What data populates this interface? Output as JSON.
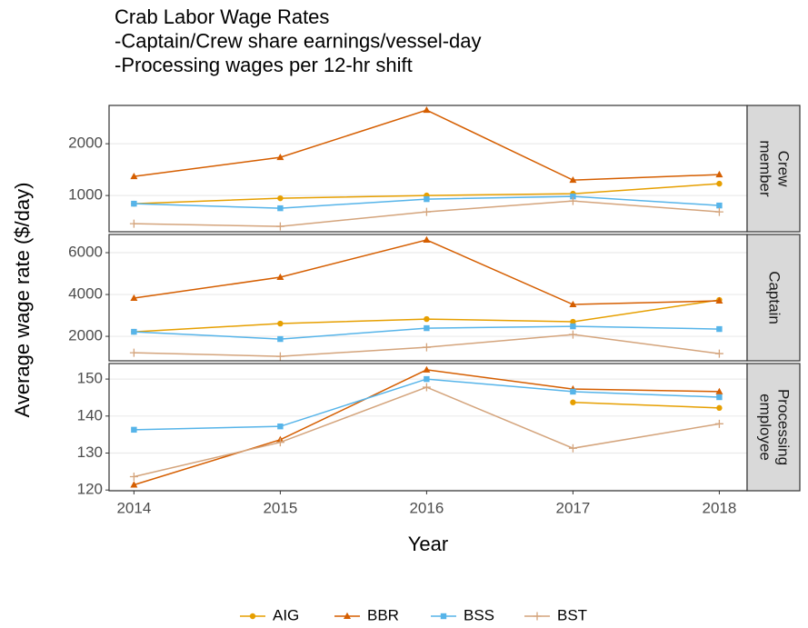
{
  "chart_data": [
    {
      "type": "line",
      "title": [
        "Crab Labor Wage Rates",
        "-Captain/Crew share earnings/vessel-day",
        "-Processing wages per 12-hr shift"
      ],
      "ylabel": "Average wage rate ($/day)",
      "facet": [
        "Crew",
        "member"
      ],
      "x": [
        2014,
        2015,
        2016,
        2017,
        2018
      ],
      "xlim": [
        2013.83,
        2018.19
      ],
      "ylim": [
        300,
        2740
      ],
      "yticks": [
        1000,
        2000
      ],
      "grid": true,
      "series": [
        {
          "name": "AIG",
          "color": "#e69f00",
          "marker": "circle",
          "values": [
            842,
            947,
            1000,
            1035,
            1228
          ]
        },
        {
          "name": "BBR",
          "color": "#d55e00",
          "marker": "triangle",
          "values": [
            1368,
            1737,
            2649,
            1298,
            1404
          ]
        },
        {
          "name": "BSS",
          "color": "#56b4e9",
          "marker": "square",
          "values": [
            842,
            754,
            930,
            982,
            807
          ]
        },
        {
          "name": "BST",
          "color": "#d4a47c",
          "marker": "plus",
          "values": [
            456,
            404,
            684,
            895,
            684
          ]
        }
      ]
    },
    {
      "type": "line",
      "facet": [
        "Captain"
      ],
      "x": [
        2014,
        2015,
        2016,
        2017,
        2018
      ],
      "xlim": [
        2013.83,
        2018.19
      ],
      "ylim": [
        830,
        6870
      ],
      "yticks": [
        2000,
        4000,
        6000
      ],
      "grid": true,
      "series": [
        {
          "name": "AIG",
          "color": "#e69f00",
          "marker": "circle",
          "values": [
            2217,
            2609,
            2826,
            2696,
            3739
          ]
        },
        {
          "name": "BBR",
          "color": "#d55e00",
          "marker": "triangle",
          "values": [
            3826,
            4826,
            6609,
            3522,
            3696
          ]
        },
        {
          "name": "BSS",
          "color": "#56b4e9",
          "marker": "square",
          "values": [
            2217,
            1870,
            2391,
            2478,
            2348
          ]
        },
        {
          "name": "BST",
          "color": "#d4a47c",
          "marker": "plus",
          "values": [
            1217,
            1043,
            1478,
            2087,
            1174
          ]
        }
      ]
    },
    {
      "type": "line",
      "facet": [
        "Processing",
        "employee"
      ],
      "xlabel": "Year",
      "x": [
        2014,
        2015,
        2016,
        2017,
        2018
      ],
      "xlim": [
        2013.83,
        2018.19
      ],
      "xticks": [
        2014,
        2015,
        2016,
        2017,
        2018
      ],
      "ylim": [
        119.8,
        154.2
      ],
      "yticks": [
        120,
        130,
        140,
        150
      ],
      "grid": true,
      "series": [
        {
          "name": "AIG",
          "color": "#e69f00",
          "marker": "circle",
          "values": [
            null,
            null,
            null,
            143.7,
            142.2
          ]
        },
        {
          "name": "BBR",
          "color": "#d55e00",
          "marker": "triangle",
          "values": [
            121.4,
            133.6,
            152.5,
            147.3,
            146.6
          ]
        },
        {
          "name": "BSS",
          "color": "#56b4e9",
          "marker": "square",
          "values": [
            136.3,
            137.2,
            150,
            146.6,
            145.1
          ]
        },
        {
          "name": "BST",
          "color": "#d4a47c",
          "marker": "plus",
          "values": [
            123.6,
            132.9,
            147.8,
            131.3,
            137.9
          ]
        }
      ]
    }
  ]
}
